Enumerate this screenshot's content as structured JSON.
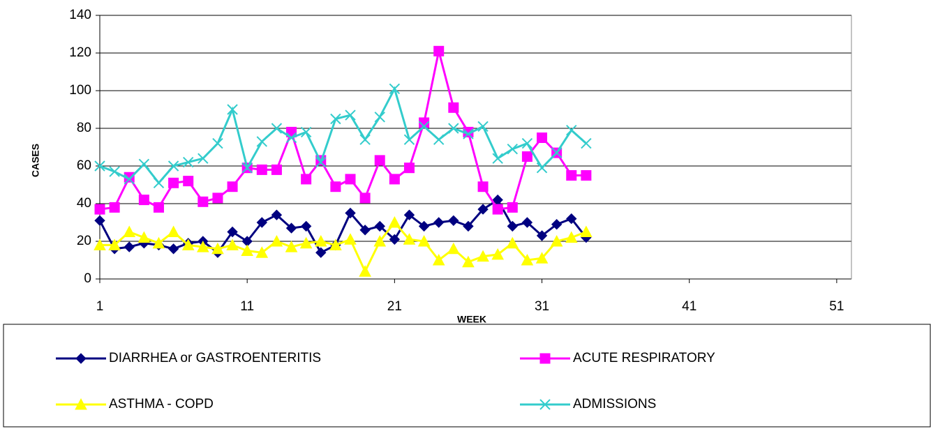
{
  "chart_data": {
    "type": "line",
    "xlabel": "WEEK",
    "ylabel": "CASES",
    "x": [
      1,
      2,
      3,
      4,
      5,
      6,
      7,
      8,
      9,
      10,
      11,
      12,
      13,
      14,
      15,
      16,
      17,
      18,
      19,
      20,
      21,
      22,
      23,
      24,
      25,
      26,
      27,
      28,
      29,
      30,
      31,
      32,
      33,
      34
    ],
    "xlim": [
      1,
      52
    ],
    "xticks": [
      1,
      11,
      21,
      31,
      41,
      51
    ],
    "ylim": [
      0,
      140
    ],
    "yticks": [
      0,
      20,
      40,
      60,
      80,
      100,
      120,
      140
    ],
    "grid": true,
    "legend": "bottom",
    "series": [
      {
        "name": "DIARRHEA or GASTROENTERITIS",
        "color": "#000080",
        "marker": "diamond",
        "values": [
          31,
          16,
          17,
          19,
          18,
          16,
          19,
          20,
          14,
          25,
          20,
          30,
          34,
          27,
          28,
          14,
          18,
          35,
          26,
          28,
          21,
          34,
          28,
          30,
          31,
          28,
          37,
          42,
          28,
          30,
          23,
          29,
          32,
          22
        ]
      },
      {
        "name": "ACUTE RESPIRATORY",
        "color": "#ff00ff",
        "marker": "square",
        "values": [
          37,
          38,
          54,
          42,
          38,
          51,
          52,
          41,
          43,
          49,
          59,
          58,
          58,
          78,
          53,
          63,
          49,
          53,
          43,
          63,
          53,
          59,
          83,
          121,
          91,
          78,
          49,
          37,
          38,
          65,
          75,
          67,
          55,
          55
        ]
      },
      {
        "name": "ASTHMA - COPD",
        "color": "#ffff00",
        "marker": "triangle",
        "values": [
          18,
          18,
          25,
          22,
          19,
          25,
          18,
          17,
          16,
          18,
          15,
          14,
          20,
          17,
          19,
          20,
          18,
          21,
          4,
          20,
          30,
          21,
          20,
          10,
          16,
          9,
          12,
          13,
          19,
          10,
          11,
          20,
          22,
          25
        ]
      },
      {
        "name": "ADMISSIONS",
        "color": "#33cccc",
        "marker": "x",
        "values": [
          60,
          57,
          53,
          61,
          51,
          60,
          62,
          64,
          72,
          90,
          59,
          73,
          80,
          75,
          78,
          62,
          85,
          87,
          74,
          86,
          101,
          74,
          81,
          74,
          80,
          77,
          81,
          64,
          69,
          72,
          59,
          67,
          79,
          72
        ]
      }
    ]
  }
}
